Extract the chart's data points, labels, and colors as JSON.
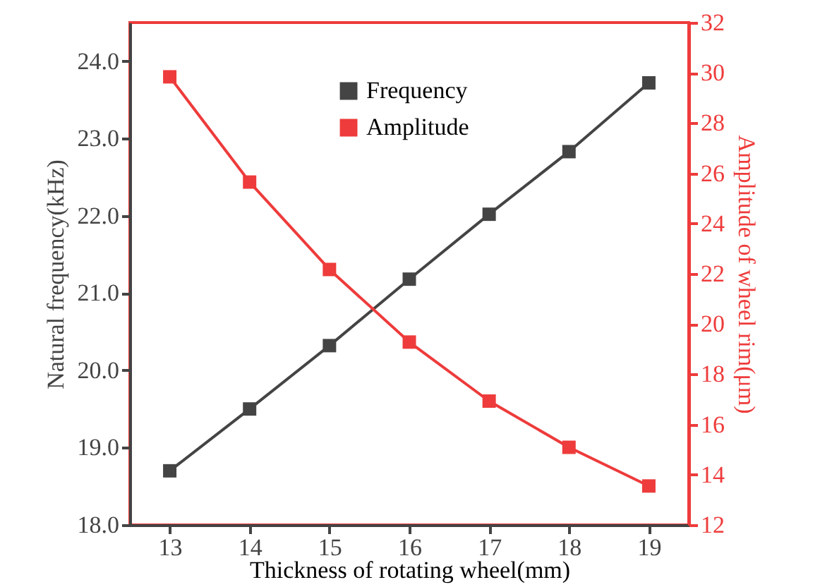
{
  "chart_data": {
    "type": "line",
    "xlabel": "Thickness of rotating wheel(mm)",
    "ylabel": "Natural frequency(kHz)",
    "y2label": "Amplitude of wheel rim(μm)",
    "x": [
      13,
      14,
      15,
      16,
      17,
      18,
      19
    ],
    "series": [
      {
        "name": "Frequency",
        "color": "#444444",
        "values": [
          18.7,
          19.5,
          20.32,
          21.18,
          22.02,
          22.83,
          23.72
        ]
      },
      {
        "name": "Amplitude",
        "color": "#ee3b3b",
        "axis": "y2",
        "values": [
          29.84,
          25.65,
          22.17,
          19.28,
          16.93,
          15.09,
          13.55
        ]
      }
    ],
    "xlim": [
      12.5,
      19.5
    ],
    "xticks": [
      13,
      14,
      15,
      16,
      17,
      18,
      19
    ],
    "ylim": [
      18,
      24.5
    ],
    "yticks": [
      {
        "value": 18,
        "label": "18.0"
      },
      {
        "value": 19,
        "label": "19.0"
      },
      {
        "value": 20,
        "label": "20.0"
      },
      {
        "value": 21,
        "label": "21.0"
      },
      {
        "value": 22,
        "label": "22.0"
      },
      {
        "value": 23,
        "label": "23.0"
      },
      {
        "value": 24,
        "label": "24.0"
      }
    ],
    "y2lim": [
      12,
      32
    ],
    "y2ticks": [
      12,
      14,
      16,
      18,
      20,
      22,
      24,
      26,
      28,
      30,
      32
    ],
    "legend": "top right",
    "marker": "square",
    "line_style": "solid",
    "grid": false
  }
}
